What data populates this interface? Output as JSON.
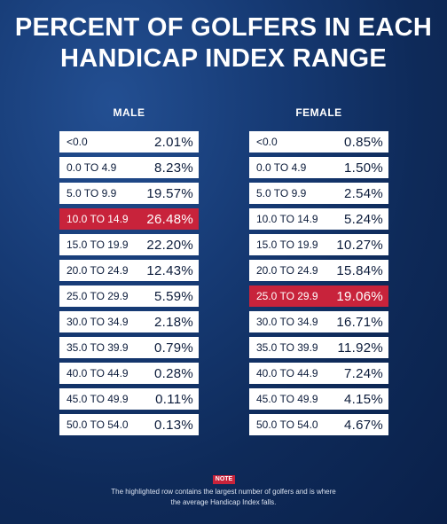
{
  "chart_data": {
    "type": "table",
    "title": "PERCENT OF GOLFERS IN EACH HANDICAP INDEX RANGE",
    "highlight_color": "#c8233b",
    "tables": [
      {
        "name": "MALE",
        "highlight_index": 3,
        "rows": [
          {
            "range": "<0.0",
            "percent": "2.01%"
          },
          {
            "range": "0.0 TO 4.9",
            "percent": "8.23%"
          },
          {
            "range": "5.0 TO 9.9",
            "percent": "19.57%"
          },
          {
            "range": "10.0 TO 14.9",
            "percent": "26.48%"
          },
          {
            "range": "15.0 TO 19.9",
            "percent": "22.20%"
          },
          {
            "range": "20.0 TO 24.9",
            "percent": "12.43%"
          },
          {
            "range": "25.0 TO 29.9",
            "percent": "5.59%"
          },
          {
            "range": "30.0 TO 34.9",
            "percent": "2.18%"
          },
          {
            "range": "35.0 TO 39.9",
            "percent": "0.79%"
          },
          {
            "range": "40.0 TO 44.9",
            "percent": "0.28%"
          },
          {
            "range": "45.0 TO 49.9",
            "percent": "0.11%"
          },
          {
            "range": "50.0 TO 54.0",
            "percent": "0.13%"
          }
        ]
      },
      {
        "name": "FEMALE",
        "highlight_index": 6,
        "rows": [
          {
            "range": "<0.0",
            "percent": "0.85%"
          },
          {
            "range": "0.0 TO 4.9",
            "percent": "1.50%"
          },
          {
            "range": "5.0 TO 9.9",
            "percent": "2.54%"
          },
          {
            "range": "10.0 TO 14.9",
            "percent": "5.24%"
          },
          {
            "range": "15.0 TO 19.9",
            "percent": "10.27%"
          },
          {
            "range": "20.0 TO 24.9",
            "percent": "15.84%"
          },
          {
            "range": "25.0 TO 29.9",
            "percent": "19.06%"
          },
          {
            "range": "30.0 TO 34.9",
            "percent": "16.71%"
          },
          {
            "range": "35.0 TO 39.9",
            "percent": "11.92%"
          },
          {
            "range": "40.0 TO 44.9",
            "percent": "7.24%"
          },
          {
            "range": "45.0 TO 49.9",
            "percent": "4.15%"
          },
          {
            "range": "50.0 TO 54.0",
            "percent": "4.67%"
          }
        ]
      }
    ]
  },
  "note": {
    "label": "NOTE",
    "text": "The highlighted row contains the largest number of golfers and is where the average Handicap Index falls."
  }
}
